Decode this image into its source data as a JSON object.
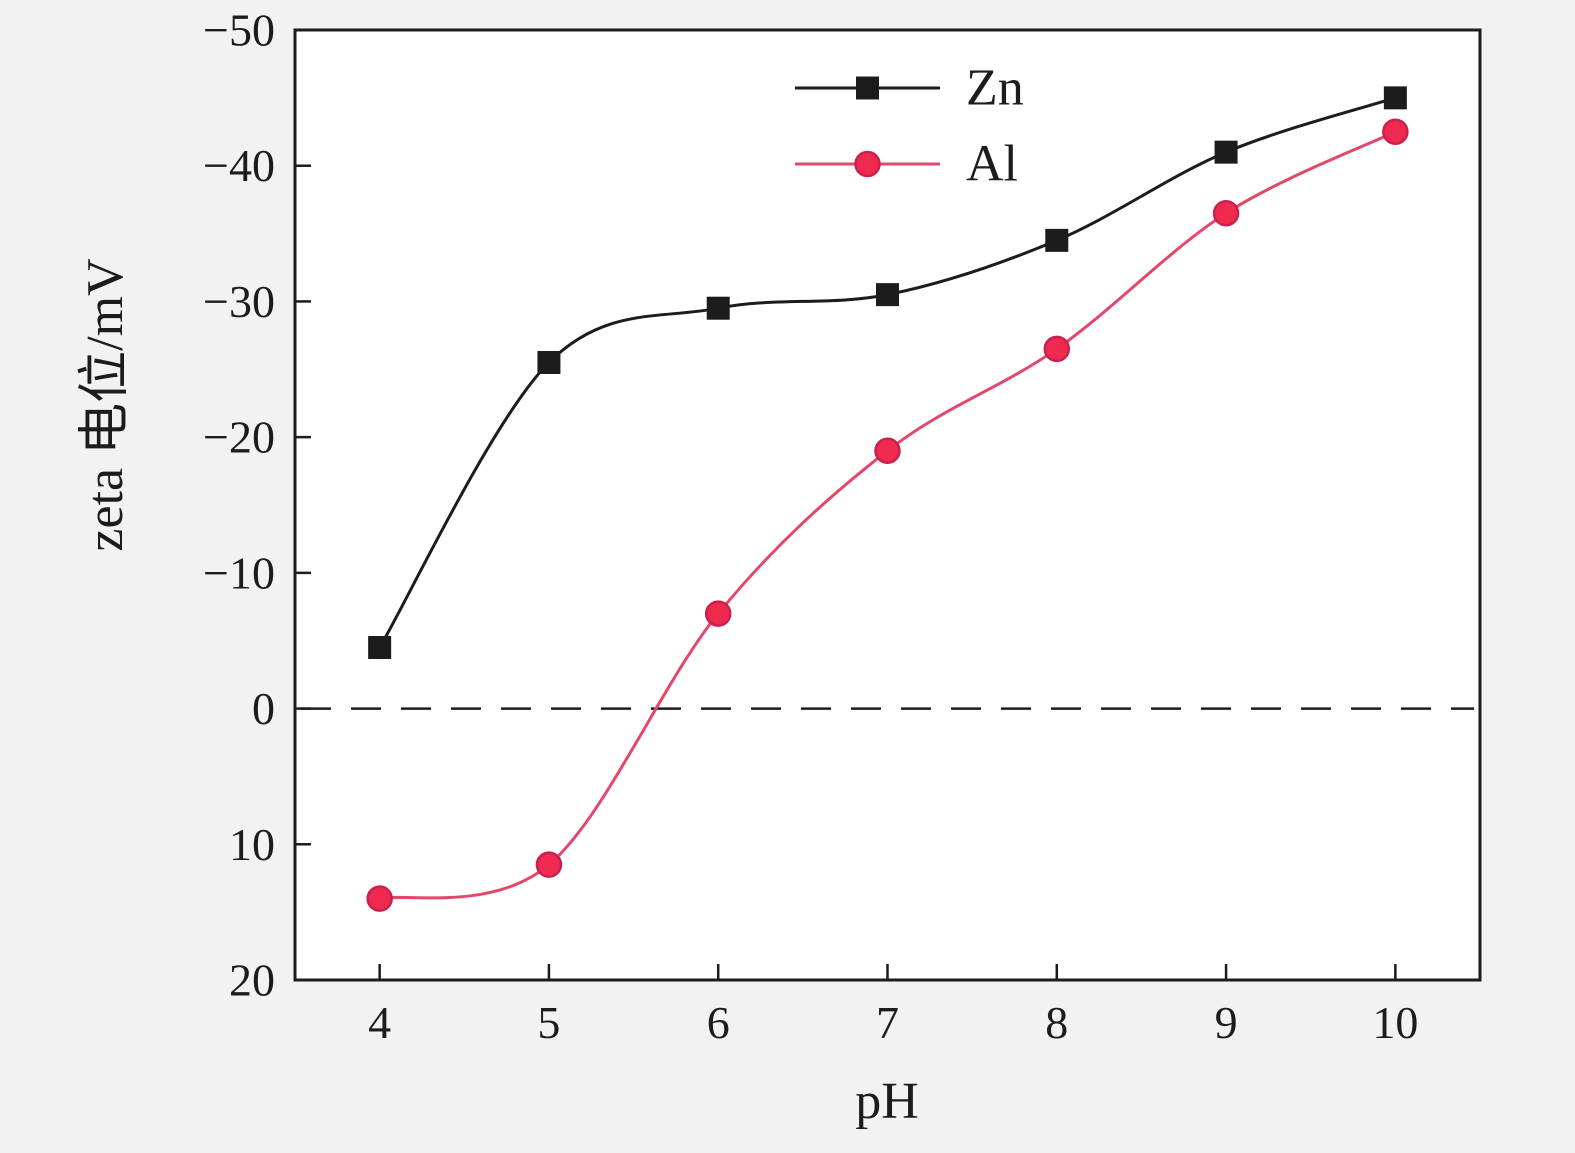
{
  "chart_data": {
    "type": "line",
    "title": "",
    "xlabel": "pH",
    "ylabel": "zeta 电位/mV",
    "x": [
      4,
      5,
      6,
      7,
      8,
      9,
      10
    ],
    "series": [
      {
        "name": "Zn",
        "line_color": "#1c1c1c",
        "marker": "square",
        "marker_fill": "#1c1c1c",
        "marker_stroke": "#1c1c1c",
        "values": [
          -4.5,
          -25.5,
          -29.5,
          -30.5,
          -34.5,
          -41,
          -45
        ]
      },
      {
        "name": "Al",
        "line_color": "#e3486b",
        "marker": "circle",
        "marker_fill": "#ee2b4e",
        "marker_stroke": "#c92050",
        "values": [
          14,
          11.5,
          -7,
          -19,
          -26.5,
          -36.5,
          -42.5
        ]
      }
    ],
    "xticks": [
      4,
      5,
      6,
      7,
      8,
      9,
      10
    ],
    "yticks": [
      -50,
      -40,
      -30,
      -20,
      -10,
      0,
      10,
      20
    ],
    "xlim": [
      3.5,
      10.5
    ],
    "ylim_top": -50,
    "ylim_bottom": 20,
    "y_axis_inverted": true,
    "reference_line": {
      "value": 0,
      "style": "dashed",
      "color": "#1c1c1c"
    },
    "legend": {
      "position": "top-center",
      "entries": [
        "Zn",
        "Al"
      ]
    },
    "grid": false,
    "background": "#f2f2f2",
    "plot_background": "#ffffff",
    "frame_color": "#1c1c1c"
  }
}
